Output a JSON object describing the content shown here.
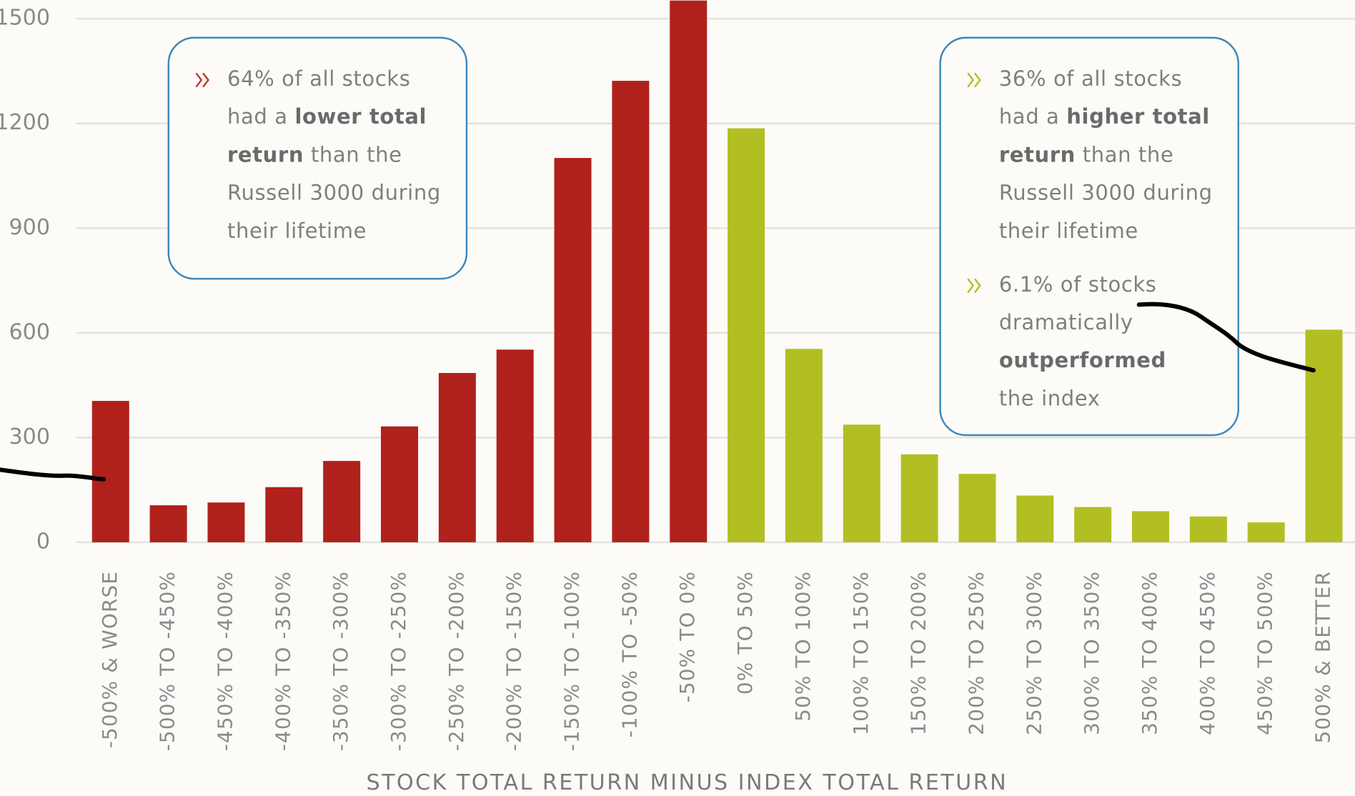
{
  "chart_data": {
    "type": "bar",
    "x_label": "STOCK TOTAL RETURN MINUS INDEX TOTAL RETURN",
    "categories": [
      "-500% & WORSE",
      "-500% TO -450%",
      "-450% TO -400%",
      "-400% TO -350%",
      "-350% TO -300%",
      "-300% TO -250%",
      "-250% TO -200%",
      "-200% TO -150%",
      "-150% TO -100%",
      "-100% TO -50%",
      "-50% TO 0%",
      "0% TO 50%",
      "50% TO 100%",
      "100% TO 150%",
      "150% TO 200%",
      "200% TO 250%",
      "250% TO 300%",
      "300% TO 350%",
      "350% TO 400%",
      "400% TO 450%",
      "450% TO 500%",
      "500% & BETTER"
    ],
    "values": [
      405,
      106,
      114,
      158,
      233,
      332,
      485,
      552,
      1101,
      1322,
      1560,
      1186,
      554,
      337,
      252,
      196,
      134,
      101,
      89,
      74,
      57,
      609
    ],
    "colors": [
      "#b0211b",
      "#b0211b",
      "#b0211b",
      "#b0211b",
      "#b0211b",
      "#b0211b",
      "#b0211b",
      "#b0211b",
      "#b0211b",
      "#b0211b",
      "#b0211b",
      "#b2bf22",
      "#b2bf22",
      "#b2bf22",
      "#b2bf22",
      "#b2bf22",
      "#b2bf22",
      "#b2bf22",
      "#b2bf22",
      "#b2bf22",
      "#b2bf22",
      "#b2bf22"
    ],
    "ylim": [
      0,
      1552
    ],
    "yticks": [
      0,
      300,
      600,
      900,
      1200,
      1500
    ],
    "grid": true,
    "callouts": [
      {
        "items": [
          {
            "color": "#c0392b",
            "lines": [
              [
                {
                  "text": "64% of all stocks"
                }
              ],
              [
                {
                  "text": "had a "
                },
                {
                  "text": "lower total",
                  "bold": true
                }
              ],
              [
                {
                  "text": "return",
                  "bold": true
                },
                {
                  "text": " than the"
                }
              ],
              [
                {
                  "text": "Russell 3000 during"
                }
              ],
              [
                {
                  "text": "their lifetime"
                }
              ]
            ]
          }
        ]
      },
      {
        "items": [
          {
            "color": "#b2bf22",
            "lines": [
              [
                {
                  "text": "36% of all stocks"
                }
              ],
              [
                {
                  "text": "had a "
                },
                {
                  "text": "higher total",
                  "bold": true
                }
              ],
              [
                {
                  "text": "return",
                  "bold": true
                },
                {
                  "text": " than the"
                }
              ],
              [
                {
                  "text": "Russell 3000 during"
                }
              ],
              [
                {
                  "text": "their lifetime"
                }
              ]
            ]
          },
          {
            "color": "#b2bf22",
            "lines": [
              [
                {
                  "text": "6.1% of stocks"
                }
              ],
              [
                {
                  "text": "dramatically"
                }
              ],
              [
                {
                  "text": "outperformed",
                  "bold": true
                }
              ],
              [
                {
                  "text": "the index"
                }
              ]
            ]
          }
        ]
      }
    ]
  }
}
